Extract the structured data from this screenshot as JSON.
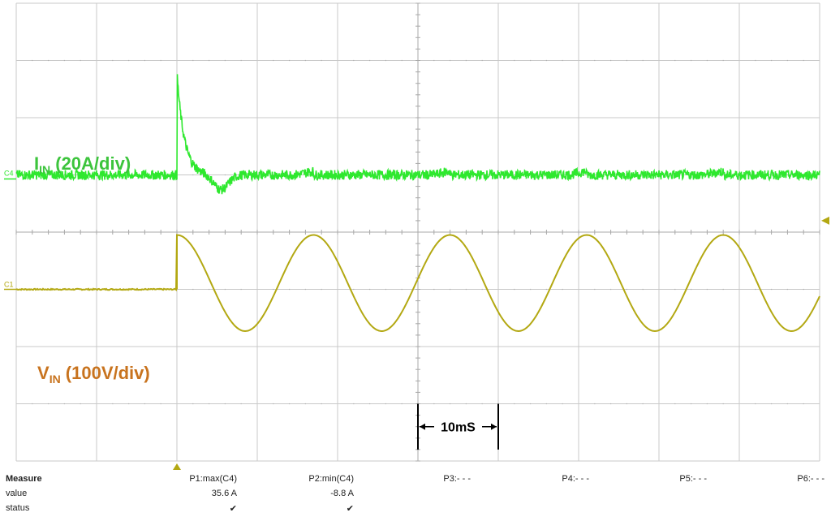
{
  "chart_data": {
    "type": "line",
    "time_div_annotation": "10mS",
    "series": [
      {
        "key": "current",
        "channel_tag": "C4",
        "label_main": "I",
        "label_sub": "IN",
        "label_rest": " (20A/div)",
        "color": "#2ee82e",
        "label_color": "#3cc43c",
        "volts_per_div": 20,
        "baseline_div": 0.14,
        "noise_div": 0.1,
        "step_time_div": 0.0,
        "inrush_peak_A": 35.6,
        "dip_min_A": -8.8
      },
      {
        "key": "voltage",
        "channel_tag": "C1",
        "label_main": "V",
        "label_sub": "IN",
        "label_rest": " (100V/div)",
        "color": "#b3a812",
        "label_color": "#c8731e",
        "volts_per_div": 100,
        "baseline_div": 0.0,
        "amplitude_div": 1.68,
        "offset_div": 0.97,
        "period_div": 1.7,
        "step_time_div": 0.0
      }
    ],
    "xlim_div": [
      -5,
      5
    ],
    "ylim_div": [
      -4,
      4
    ],
    "grid": true
  },
  "measure": {
    "title": "Measure",
    "row_value": "value",
    "row_status": "status",
    "columns": [
      {
        "name": "P1:max(C4)",
        "value": "35.6 A",
        "status": "✔"
      },
      {
        "name": "P2:min(C4)",
        "value": "-8.8 A",
        "status": "✔"
      },
      {
        "name": "P3:- - -",
        "value": "",
        "status": ""
      },
      {
        "name": "P4:- - -",
        "value": "",
        "status": ""
      },
      {
        "name": "P5:- - -",
        "value": "",
        "status": ""
      },
      {
        "name": "P6:- - -",
        "value": "",
        "status": ""
      }
    ]
  },
  "colors": {
    "trigger_marker": "#b3a812"
  }
}
